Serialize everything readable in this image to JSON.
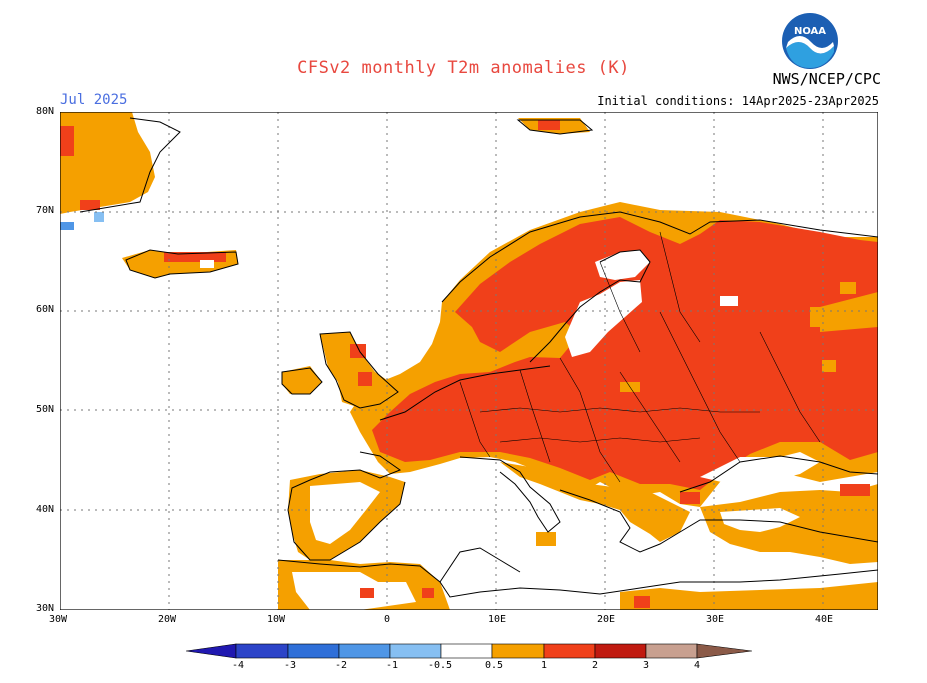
{
  "title": "CFSv2 monthly T2m anomalies (K)",
  "month": "Jul 2025",
  "agency": "NWS/NCEP/CPC",
  "logo_text": "NOAA",
  "initial_conditions": "Initial conditions: 14Apr2025-23Apr2025",
  "lat_labels": [
    "80N",
    "70N",
    "60N",
    "50N",
    "40N",
    "30N"
  ],
  "lon_labels": [
    "30W",
    "20W",
    "10W",
    "0",
    "10E",
    "20E",
    "30E",
    "40E"
  ],
  "colorbar": {
    "labels": [
      "-4",
      "-3",
      "-2",
      "-1",
      "-0.5",
      "0.5",
      "1",
      "2",
      "3",
      "4"
    ],
    "colors": [
      "#2018b0",
      "#2c44c8",
      "#2f6fd8",
      "#4f96e6",
      "#86bff2",
      "#ffffff",
      "#f5a000",
      "#f0401a",
      "#c01a10",
      "#8b0a0a",
      "#c8a090",
      "#8b5a48"
    ]
  }
}
